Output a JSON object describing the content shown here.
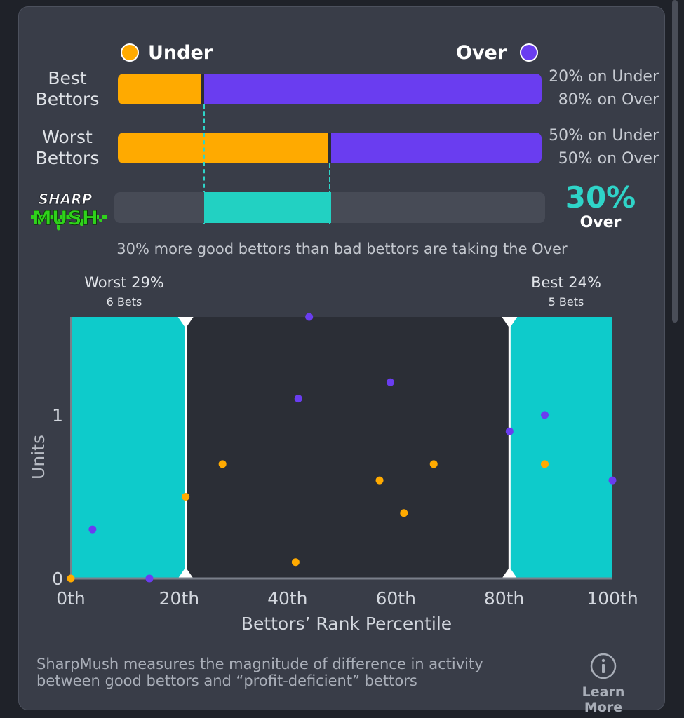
{
  "legend": {
    "under_label": "Under",
    "over_label": "Over"
  },
  "colors": {
    "under": "#ffaa00",
    "over": "#6a3df0",
    "accent": "#2fd4c8",
    "zone": "#0ecbcb"
  },
  "rows": [
    {
      "label_line1": "Best",
      "label_line2": "Bettors",
      "under_pct": 20,
      "over_pct": 80,
      "under_text": "20% on Under",
      "over_text": "80% on Over"
    },
    {
      "label_line1": "Worst",
      "label_line2": "Bettors",
      "under_pct": 50,
      "over_pct": 50,
      "under_text": "50% on Under",
      "over_text": "50% on Over"
    }
  ],
  "sharpmush": {
    "logo_top": "SHARP",
    "logo_bottom": "MUSH",
    "value": "30%",
    "side": "Over",
    "diff_start_pct": 20,
    "diff_end_pct": 50,
    "summary": "30% more good bettors than bad bettors are taking the Over"
  },
  "chart_data": {
    "type": "scatter",
    "title": "",
    "xlabel": "Bettors’ Rank Percentile",
    "ylabel": "Units",
    "xlim": [
      0,
      100
    ],
    "ylim": [
      0,
      1.6
    ],
    "x_ticks": [
      0,
      20,
      40,
      60,
      80,
      100
    ],
    "x_tick_labels": [
      "0th",
      "20th",
      "40th",
      "60th",
      "80th",
      "100th"
    ],
    "y_ticks": [
      0,
      1
    ],
    "y_tick_labels": [
      "0",
      "1"
    ],
    "zones": [
      {
        "name": "worst",
        "from": 0,
        "to": 21.2,
        "label": "Worst 29%",
        "sublabel": "6 Bets"
      },
      {
        "name": "best",
        "from": 81,
        "to": 100,
        "label": "Best 24%",
        "sublabel": "5 Bets"
      }
    ],
    "series": [
      {
        "name": "Under",
        "color": "#ffaa00",
        "points": [
          [
            0,
            0
          ],
          [
            21.2,
            0.5
          ],
          [
            28,
            0.7
          ],
          [
            41.5,
            0.1
          ],
          [
            57,
            0.6
          ],
          [
            61.5,
            0.4
          ],
          [
            67,
            0.7
          ],
          [
            87.5,
            0.7
          ]
        ]
      },
      {
        "name": "Over",
        "color": "#6a3df0",
        "points": [
          [
            4,
            0.3
          ],
          [
            14.5,
            0
          ],
          [
            42,
            1.1
          ],
          [
            44,
            1.6
          ],
          [
            59,
            1.2
          ],
          [
            81,
            0.9
          ],
          [
            87.5,
            1.0
          ],
          [
            100,
            0.6
          ]
        ]
      }
    ]
  },
  "footer": {
    "line1": "SharpMush measures the magnitude of difference in activity",
    "line2": "between good bettors and “profit-deficient” bettors",
    "info_icon": "info-circle-icon",
    "learn_more": "Learn More"
  }
}
